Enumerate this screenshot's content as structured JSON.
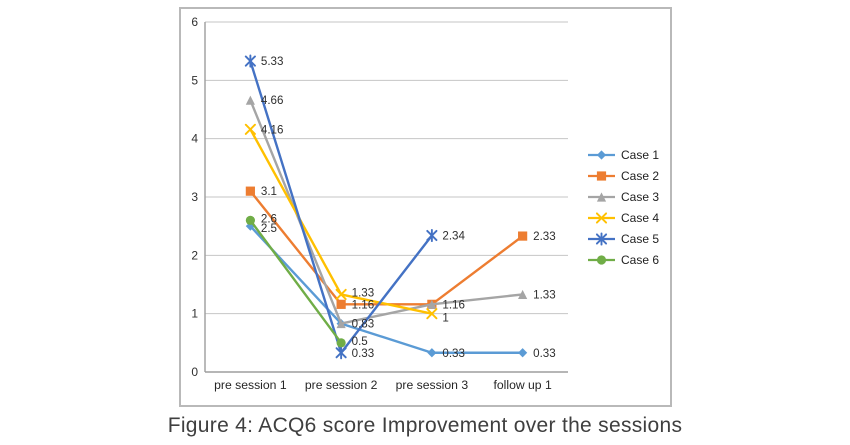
{
  "caption": "Figure 4: ACQ6 score Improvement over the sessions",
  "chart_data": {
    "type": "line",
    "title": "",
    "xlabel": "",
    "ylabel": "",
    "categories": [
      "pre session 1",
      "pre session 2",
      "pre session 3",
      "follow up 1"
    ],
    "ylim": [
      0,
      6
    ],
    "yticks": [
      "0",
      "1",
      "2",
      "3",
      "4",
      "5",
      "6"
    ],
    "grid": true,
    "legend_position": "right",
    "series": [
      {
        "name": "Case 1",
        "color": "#5B9BD5",
        "marker": "diamond",
        "values": [
          2.5,
          0.83,
          0.33,
          0.33
        ],
        "labels": [
          "2.5",
          null,
          "0.33",
          "0.33"
        ],
        "label_dy": [
          2,
          0,
          0,
          0
        ]
      },
      {
        "name": "Case 2",
        "color": "#ED7D31",
        "marker": "square",
        "values": [
          3.1,
          1.16,
          1.16,
          2.33
        ],
        "labels": [
          "3.1",
          "1.16",
          "1.16",
          "2.33"
        ],
        "label_dy": [
          0,
          0,
          0,
          0
        ]
      },
      {
        "name": "Case 3",
        "color": "#A5A5A5",
        "marker": "triangle",
        "values": [
          4.66,
          0.83,
          1.16,
          1.33
        ],
        "labels": [
          "4.66",
          "0.83",
          null,
          "1.33"
        ],
        "label_dy": [
          0,
          0,
          0,
          0
        ]
      },
      {
        "name": "Case 4",
        "color": "#FFC000",
        "marker": "x",
        "values": [
          4.16,
          1.33,
          1,
          null
        ],
        "labels": [
          "4.16",
          "1.33",
          "1",
          null
        ],
        "label_dy": [
          0,
          -2,
          4,
          0
        ]
      },
      {
        "name": "Case 5",
        "color": "#4472C4",
        "marker": "star",
        "values": [
          5.33,
          0.33,
          2.34,
          null
        ],
        "labels": [
          "5.33",
          "0.33",
          "2.34",
          null
        ],
        "label_dy": [
          0,
          0,
          0,
          0
        ]
      },
      {
        "name": "Case 6",
        "color": "#70AD47",
        "marker": "circle",
        "values": [
          2.6,
          0.5,
          null,
          null
        ],
        "labels": [
          "2.6",
          "0.5",
          null,
          null
        ],
        "label_dy": [
          -2,
          -2,
          0,
          0
        ]
      }
    ]
  }
}
